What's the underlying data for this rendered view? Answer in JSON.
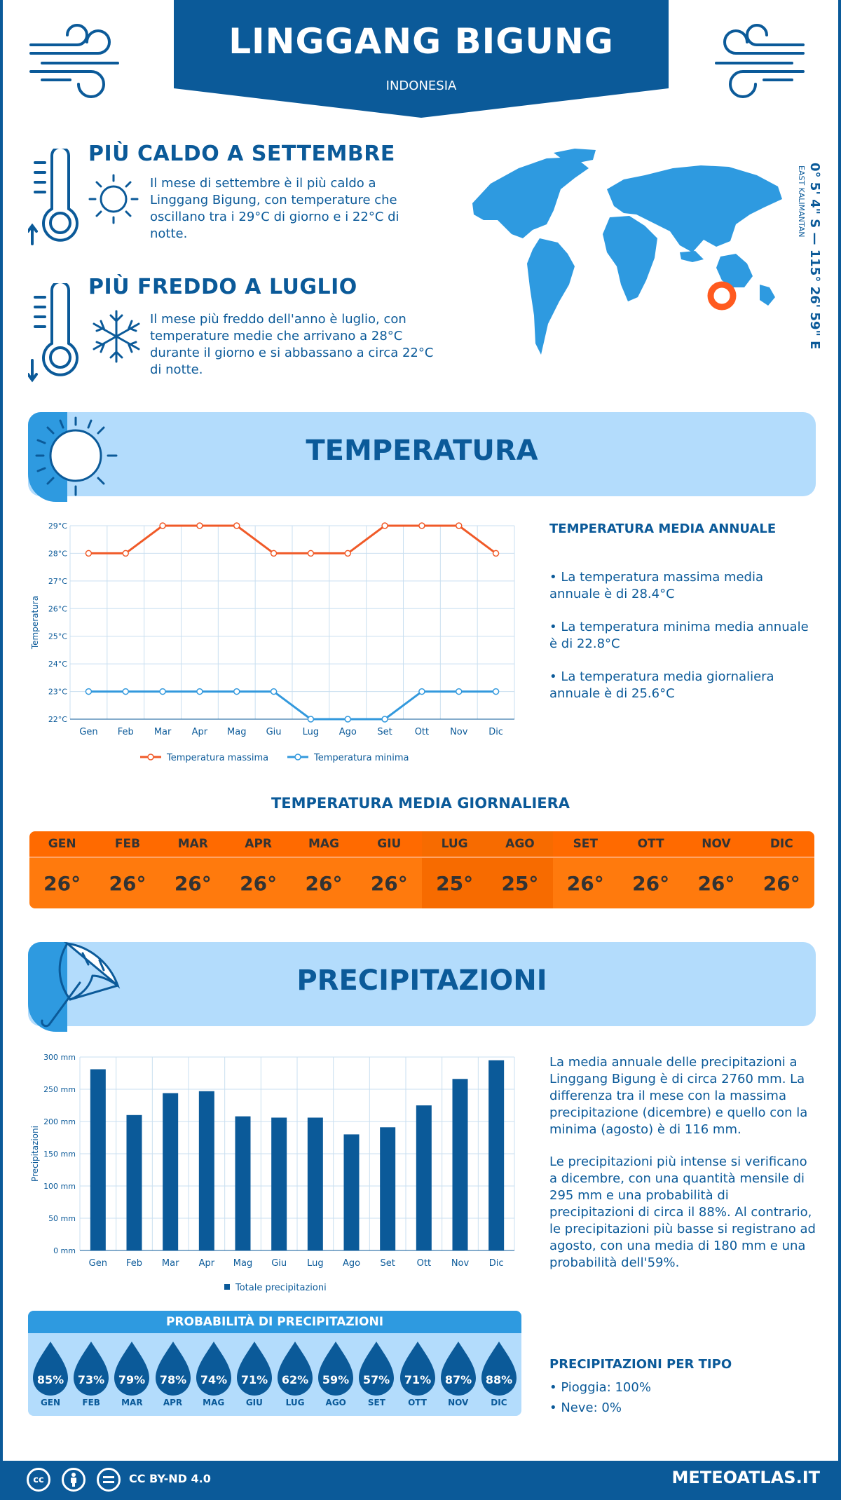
{
  "header": {
    "title": "LINGGANG BIGUNG",
    "country": "INDONESIA"
  },
  "hot": {
    "title": "PIÙ CALDO A SETTEMBRE",
    "text": "Il mese di settembre è il più caldo a Linggang Bigung, con temperature che oscillano tra i 29°C di giorno e i 22°C di notte."
  },
  "cold": {
    "title": "PIÙ FREDDO A LUGLIO",
    "text": "Il mese più freddo dell'anno è luglio, con temperature medie che arrivano a 28°C durante il giorno e si abbassano a circa 22°C di notte."
  },
  "location": {
    "coords": "0° 5' 4\" S — 115° 26' 59\" E",
    "region": "EAST KALIMANTAN"
  },
  "temperature": {
    "section_title": "TEMPERATURA",
    "annual_title": "TEMPERATURA MEDIA ANNUALE",
    "annual_items": [
      "• La temperatura massima media annuale è di 28.4°C",
      "• La temperatura minima media annuale è di 22.8°C",
      "• La temperatura media giornaliera annuale è di 25.6°C"
    ],
    "daily_title": "TEMPERATURA MEDIA GIORNALIERA",
    "daily": [
      {
        "m": "GEN",
        "v": "26°"
      },
      {
        "m": "FEB",
        "v": "26°"
      },
      {
        "m": "MAR",
        "v": "26°"
      },
      {
        "m": "APR",
        "v": "26°"
      },
      {
        "m": "MAG",
        "v": "26°"
      },
      {
        "m": "GIU",
        "v": "26°"
      },
      {
        "m": "LUG",
        "v": "25°"
      },
      {
        "m": "AGO",
        "v": "25°"
      },
      {
        "m": "SET",
        "v": "26°"
      },
      {
        "m": "OTT",
        "v": "26°"
      },
      {
        "m": "NOV",
        "v": "26°"
      },
      {
        "m": "DIC",
        "v": "26°"
      }
    ]
  },
  "precipitation": {
    "section_title": "PRECIPITAZIONI",
    "paragraph1": "La media annuale delle precipitazioni a Linggang Bigung è di circa 2760 mm. La differenza tra il mese con la massima precipitazione (dicembre) e quello con la minima (agosto) è di 116 mm.",
    "paragraph2": "Le precipitazioni più intense si verificano a dicembre, con una quantità mensile di 295 mm e una probabilità di precipitazioni di circa il 88%. Al contrario, le precipitazioni più basse si registrano ad agosto, con una media di 180 mm e una probabilità dell'59%.",
    "prob_title": "PROBABILITÀ DI PRECIPITAZIONI",
    "probabilities": [
      {
        "m": "GEN",
        "v": "85%"
      },
      {
        "m": "FEB",
        "v": "73%"
      },
      {
        "m": "MAR",
        "v": "79%"
      },
      {
        "m": "APR",
        "v": "78%"
      },
      {
        "m": "MAG",
        "v": "74%"
      },
      {
        "m": "GIU",
        "v": "71%"
      },
      {
        "m": "LUG",
        "v": "62%"
      },
      {
        "m": "AGO",
        "v": "59%"
      },
      {
        "m": "SET",
        "v": "57%"
      },
      {
        "m": "OTT",
        "v": "71%"
      },
      {
        "m": "NOV",
        "v": "87%"
      },
      {
        "m": "DIC",
        "v": "88%"
      }
    ],
    "type_title": "PRECIPITAZIONI PER TIPO",
    "type_items": [
      "• Pioggia: 100%",
      "• Neve: 0%"
    ]
  },
  "footer": {
    "license": "CC BY-ND 4.0",
    "site": "METEOATLAS.IT"
  },
  "colors": {
    "primary": "#0b5a99",
    "light_blue": "#b3dcfc",
    "mid_blue": "#2e9ae0",
    "orange": "#ff6a00",
    "max_line": "#f05a28",
    "min_line": "#3399dd"
  },
  "chart_data": [
    {
      "type": "line",
      "categories": [
        "Gen",
        "Feb",
        "Mar",
        "Apr",
        "Mag",
        "Giu",
        "Lug",
        "Ago",
        "Set",
        "Ott",
        "Nov",
        "Dic"
      ],
      "ylabel": "Temperatura",
      "ylim": [
        22,
        29
      ],
      "yticks": [
        "22°C",
        "23°C",
        "24°C",
        "25°C",
        "26°C",
        "27°C",
        "28°C",
        "29°C"
      ],
      "grid": true,
      "legend": "bottom",
      "series": [
        {
          "name": "Temperatura massima",
          "values": [
            28,
            28,
            29,
            29,
            29,
            28,
            28,
            28,
            29,
            29,
            29,
            28
          ]
        },
        {
          "name": "Temperatura minima",
          "values": [
            23,
            23,
            23,
            23,
            23,
            23,
            22,
            22,
            22,
            23,
            23,
            23
          ]
        }
      ]
    },
    {
      "type": "bar",
      "categories": [
        "Gen",
        "Feb",
        "Mar",
        "Apr",
        "Mag",
        "Giu",
        "Lug",
        "Ago",
        "Set",
        "Ott",
        "Nov",
        "Dic"
      ],
      "ylabel": "Precipitazioni",
      "ylim": [
        0,
        300
      ],
      "yticks": [
        "0 mm",
        "50 mm",
        "100 mm",
        "150 mm",
        "200 mm",
        "250 mm",
        "300 mm"
      ],
      "grid": true,
      "legend": "bottom",
      "series": [
        {
          "name": "Totale precipitazioni",
          "values": [
            281,
            210,
            244,
            247,
            208,
            206,
            206,
            180,
            191,
            225,
            266,
            295
          ]
        }
      ]
    }
  ]
}
